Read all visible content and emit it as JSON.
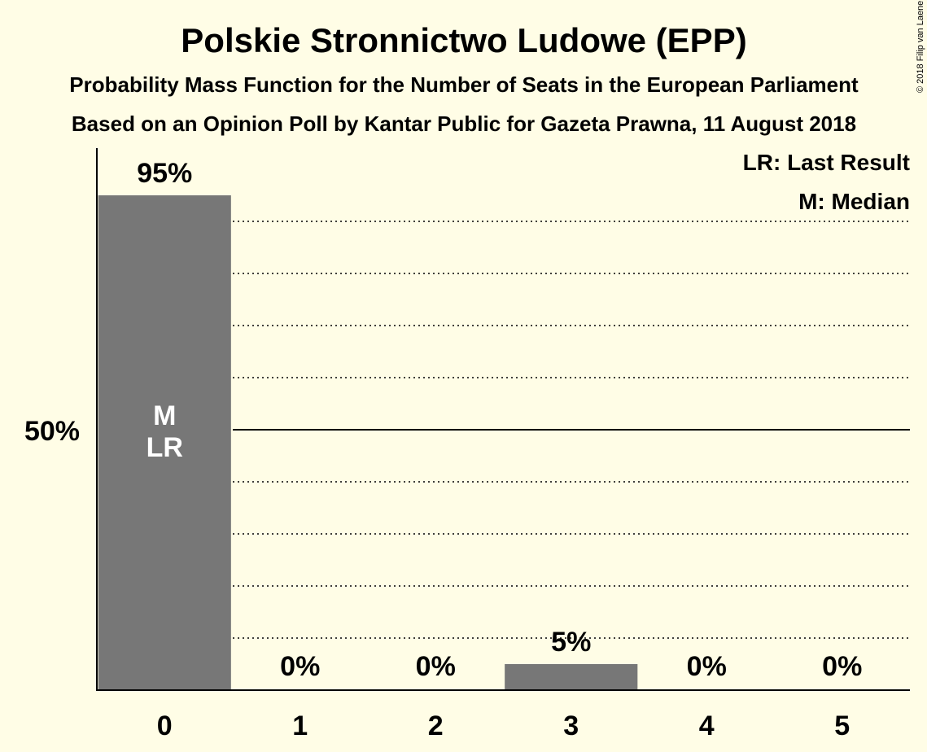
{
  "chart_data": {
    "type": "bar",
    "title": "Polskie Stronnictwo Ludowe (EPP)",
    "subtitle_1": "Probability Mass Function for the Number of Seats in the European Parliament",
    "subtitle_2": "Based on an Opinion Poll by Kantar Public for Gazeta Prawna, 11 August 2018",
    "copyright": "© 2018 Filip van Laenen",
    "categories": [
      "0",
      "1",
      "2",
      "3",
      "4",
      "5"
    ],
    "values": [
      95,
      0,
      0,
      5,
      0,
      0
    ],
    "value_labels": [
      "95%",
      "0%",
      "0%",
      "5%",
      "0%",
      "0%"
    ],
    "ylim": [
      0,
      100
    ],
    "ytick_value": 50,
    "ytick_label": "50%",
    "gridlines": [
      10,
      20,
      30,
      40,
      60,
      70,
      80,
      90
    ],
    "median_seat": "0",
    "last_result_seat": "0",
    "bar_markers": [
      "M",
      "LR"
    ],
    "legend": [
      "LR: Last Result",
      "M: Median"
    ],
    "bar_color": "#777777",
    "background_color": "#fffde6"
  }
}
